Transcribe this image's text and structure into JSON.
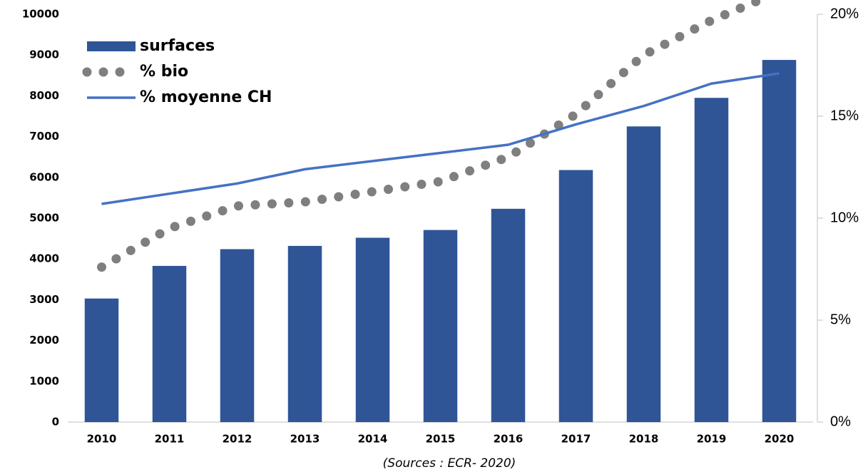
{
  "chart_data": {
    "type": "bar",
    "categories": [
      "2010",
      "2011",
      "2012",
      "2013",
      "2014",
      "2015",
      "2016",
      "2017",
      "2018",
      "2019",
      "2020"
    ],
    "series": [
      {
        "name": "surfaces",
        "type": "bar",
        "color": "#2f5597",
        "values": [
          3030,
          3830,
          4240,
          4320,
          4520,
          4710,
          5230,
          6180,
          7250,
          7950,
          8880
        ]
      },
      {
        "name": "% bio",
        "type": "line",
        "style": "dotted",
        "color": "#7f7f7f",
        "axis": "y2",
        "values": [
          7.6,
          9.5,
          10.6,
          10.8,
          11.3,
          11.8,
          13.0,
          15.1,
          18.0,
          19.7,
          21.1
        ]
      },
      {
        "name": "% moyenne CH",
        "type": "line",
        "style": "solid",
        "color": "#4472c4",
        "axis": "y2",
        "values": [
          10.7,
          11.2,
          11.7,
          12.4,
          12.8,
          13.2,
          13.6,
          14.6,
          15.5,
          16.6,
          17.1
        ]
      }
    ],
    "ylim": [
      0,
      10000
    ],
    "yticks": [
      0,
      1000,
      2000,
      3000,
      4000,
      5000,
      6000,
      7000,
      8000,
      9000,
      10000
    ],
    "y2lim": [
      0,
      20
    ],
    "y2ticks": [
      {
        "value": 0,
        "label": "0%"
      },
      {
        "value": 5,
        "label": "5%"
      },
      {
        "value": 10,
        "label": "10%"
      },
      {
        "value": 15,
        "label": "15%"
      },
      {
        "value": 20,
        "label": "20%"
      }
    ],
    "legend": "upper left",
    "note": "(Sources : ECR- 2020)"
  }
}
